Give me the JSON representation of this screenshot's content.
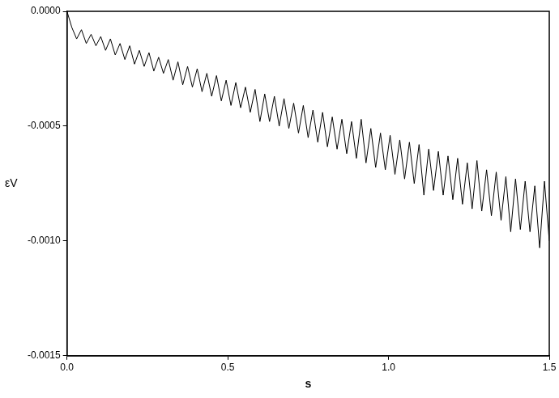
{
  "chart_data": {
    "type": "line",
    "x_label": "s",
    "y_label": "εV",
    "xlim": [
      0,
      1.5
    ],
    "ylim": [
      -0.0015,
      0
    ],
    "xticks": [
      {
        "value": 0,
        "label": "0.0"
      },
      {
        "value": 0.5,
        "label": "0.5"
      },
      {
        "value": 1,
        "label": "1.0"
      },
      {
        "value": 1.5,
        "label": "1.5"
      }
    ],
    "yticks": [
      {
        "value": -0.0015,
        "label": "-0.0015"
      },
      {
        "value": -0.001,
        "label": "-0.0010"
      },
      {
        "value": -0.0005,
        "label": "-0.0005"
      },
      {
        "value": 0,
        "label": "0.0000"
      }
    ],
    "grid": false,
    "color": "#000000",
    "x": [
      0,
      0.015,
      0.03,
      0.045,
      0.06,
      0.075,
      0.09,
      0.105,
      0.12,
      0.135,
      0.15,
      0.165,
      0.18,
      0.195,
      0.21,
      0.225,
      0.24,
      0.255,
      0.27,
      0.285,
      0.3,
      0.315,
      0.33,
      0.345,
      0.36,
      0.375,
      0.39,
      0.405,
      0.42,
      0.435,
      0.45,
      0.465,
      0.48,
      0.495,
      0.51,
      0.525,
      0.54,
      0.555,
      0.57,
      0.585,
      0.6,
      0.615,
      0.63,
      0.645,
      0.66,
      0.675,
      0.69,
      0.705,
      0.72,
      0.735,
      0.75,
      0.765,
      0.78,
      0.795,
      0.81,
      0.825,
      0.84,
      0.855,
      0.87,
      0.885,
      0.9,
      0.915,
      0.93,
      0.945,
      0.96,
      0.975,
      0.99,
      1.005,
      1.02,
      1.035,
      1.05,
      1.065,
      1.08,
      1.095,
      1.11,
      1.125,
      1.14,
      1.155,
      1.17,
      1.185,
      1.2,
      1.215,
      1.23,
      1.245,
      1.26,
      1.275,
      1.29,
      1.305,
      1.32,
      1.335,
      1.35,
      1.365,
      1.38,
      1.395,
      1.41,
      1.425,
      1.44,
      1.455,
      1.47,
      1.485,
      1.5
    ],
    "values": [
      0,
      -7e-05,
      -0.00012,
      -8e-05,
      -0.00014,
      -0.0001,
      -0.00015,
      -0.00011,
      -0.00017,
      -0.00012,
      -0.00019,
      -0.00014,
      -0.00021,
      -0.00015,
      -0.00023,
      -0.00017,
      -0.00024,
      -0.00018,
      -0.00026,
      -0.0002,
      -0.00027,
      -0.00021,
      -0.0003,
      -0.00022,
      -0.00032,
      -0.00024,
      -0.00033,
      -0.00025,
      -0.00035,
      -0.00027,
      -0.00037,
      -0.00028,
      -0.00039,
      -0.0003,
      -0.00041,
      -0.00031,
      -0.00042,
      -0.00033,
      -0.00044,
      -0.00034,
      -0.00048,
      -0.00036,
      -0.00048,
      -0.00037,
      -0.0005,
      -0.00038,
      -0.00051,
      -0.0004,
      -0.00053,
      -0.00041,
      -0.00055,
      -0.00043,
      -0.00057,
      -0.00044,
      -0.00059,
      -0.00046,
      -0.0006,
      -0.00047,
      -0.00062,
      -0.00048,
      -0.00064,
      -0.00047,
      -0.00066,
      -0.00051,
      -0.00068,
      -0.00053,
      -0.00069,
      -0.00054,
      -0.00071,
      -0.00056,
      -0.00073,
      -0.00057,
      -0.00075,
      -0.00058,
      -0.0008,
      -0.0006,
      -0.00078,
      -0.00061,
      -0.0008,
      -0.00063,
      -0.00082,
      -0.00064,
      -0.00084,
      -0.00066,
      -0.00086,
      -0.00065,
      -0.00087,
      -0.00069,
      -0.00089,
      -0.0007,
      -0.00091,
      -0.00072,
      -0.00096,
      -0.00073,
      -0.00095,
      -0.00074,
      -0.00096,
      -0.00076,
      -0.00103,
      -0.00074,
      -0.001
    ]
  }
}
